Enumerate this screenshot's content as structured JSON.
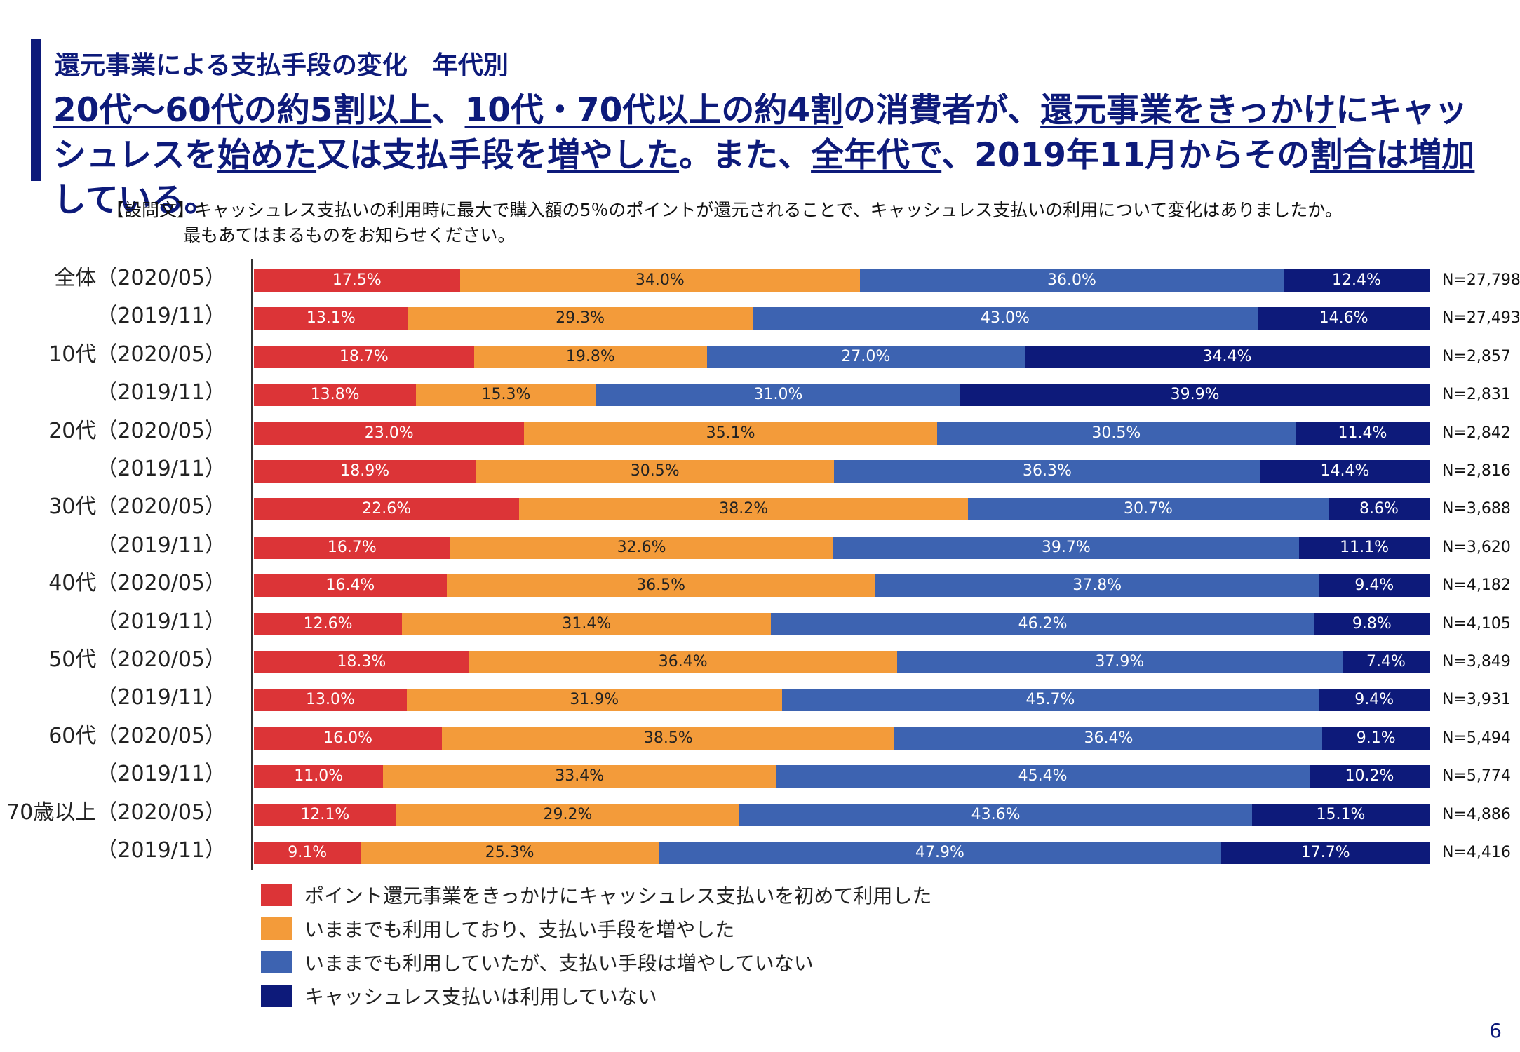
{
  "header": {
    "subtitle": "還元事業による支払手段の変化　年代別",
    "headline_parts": [
      {
        "text": "20代～60代の約5割以上",
        "u": true
      },
      {
        "text": "、",
        "u": false
      },
      {
        "text": "10代・70代以上の約4割",
        "u": true
      },
      {
        "text": "の消費者が、",
        "u": false
      },
      {
        "text": "還元事業をきっかけ",
        "u": true
      },
      {
        "text": "にキャッシュレスを",
        "u": false
      },
      {
        "text": "始めた",
        "u": true
      },
      {
        "text": "又は支払手段を",
        "u": false
      },
      {
        "text": "増やした",
        "u": true
      },
      {
        "text": "。また、",
        "u": false
      },
      {
        "text": "全年代で",
        "u": true
      },
      {
        "text": "、2019年11月からその",
        "u": false
      },
      {
        "text": "割合は増加",
        "u": true
      },
      {
        "text": "している。",
        "u": false
      }
    ]
  },
  "question": {
    "line1": "【設問文】キャッシュレス支払いの利用時に最大で購入額の5％のポイントが還元されることで、キャッシュレス支払いの利用について変化はありましたか。",
    "line2": "最もあてはまるものをお知らせください。"
  },
  "chart_data": {
    "type": "bar",
    "orientation": "horizontal",
    "stacked": "100%",
    "categories": [
      "全体（2020/05）",
      "（2019/11）",
      "10代（2020/05）",
      "（2019/11）",
      "20代（2020/05）",
      "（2019/11）",
      "30代（2020/05）",
      "（2019/11）",
      "40代（2020/05）",
      "（2019/11）",
      "50代（2020/05）",
      "（2019/11）",
      "60代（2020/05）",
      "（2019/11）",
      "70歳以上（2020/05）",
      "（2019/11）"
    ],
    "n_labels": [
      "N=27,798",
      "N=27,493",
      "N=2,857",
      "N=2,831",
      "N=2,842",
      "N=2,816",
      "N=3,688",
      "N=3,620",
      "N=4,182",
      "N=4,105",
      "N=3,849",
      "N=3,931",
      "N=5,494",
      "N=5,774",
      "N=4,886",
      "N=4,416"
    ],
    "series": [
      {
        "name": "ポイント還元事業をきっかけにキャッシュレス支払いを初めて利用した",
        "color": "#dc3437",
        "text_color": "#ffffff",
        "values": [
          17.5,
          13.1,
          18.7,
          13.8,
          23.0,
          18.9,
          22.6,
          16.7,
          16.4,
          12.6,
          18.3,
          13.0,
          16.0,
          11.0,
          12.1,
          9.1
        ]
      },
      {
        "name": "いままでも利用しており、支払い手段を増やした",
        "color": "#f39b3a",
        "text_color": "#222222",
        "values": [
          34.0,
          29.3,
          19.8,
          15.3,
          35.1,
          30.5,
          38.2,
          32.6,
          36.5,
          31.4,
          36.4,
          31.9,
          38.5,
          33.4,
          29.2,
          25.3
        ]
      },
      {
        "name": "いままでも利用していたが、支払い手段は増やしていない",
        "color": "#3d63b1",
        "text_color": "#ffffff",
        "values": [
          36.0,
          43.0,
          27.0,
          31.0,
          30.5,
          36.3,
          30.7,
          39.7,
          37.8,
          46.2,
          37.9,
          45.7,
          36.4,
          45.4,
          43.6,
          47.9
        ]
      },
      {
        "name": "キャッシュレス支払いは利用していない",
        "color": "#0d1a7a",
        "text_color": "#ffffff",
        "values": [
          12.4,
          14.6,
          34.4,
          39.9,
          11.4,
          14.4,
          8.6,
          11.1,
          9.4,
          9.8,
          7.4,
          9.4,
          9.1,
          10.2,
          15.1,
          17.7
        ]
      }
    ],
    "value_suffix": "%",
    "xlim": [
      0,
      100
    ],
    "legend_position": "bottom-left",
    "grid": false
  },
  "page_number": "6"
}
